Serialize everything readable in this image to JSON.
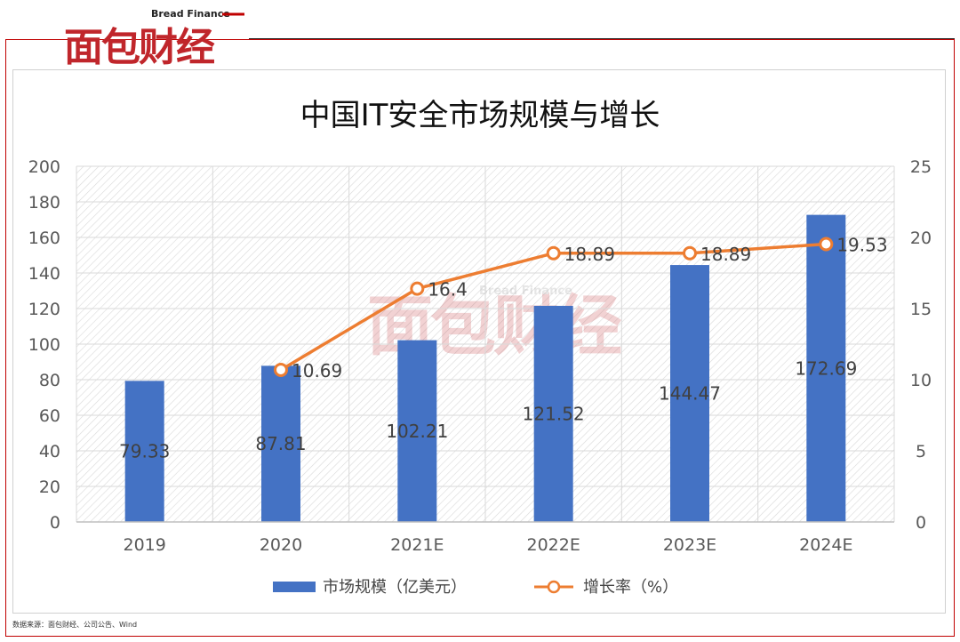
{
  "brand": {
    "logo_text": "面包财经",
    "logo_subtext": "Bread Finance",
    "watermark_text": "面包财经",
    "watermark_subtext": "Bread Finance"
  },
  "footer": {
    "source": "数据来源：面包财经、公司公告、Wind"
  },
  "chart_data": {
    "type": "bar",
    "title": "中国IT安全市场规模与增长",
    "categories": [
      "2019",
      "2020",
      "2021E",
      "2022E",
      "2023E",
      "2024E"
    ],
    "series": [
      {
        "name": "市场规模（亿美元）",
        "type": "bar",
        "axis": "left",
        "color": "#4472c4",
        "values": [
          79.33,
          87.81,
          102.21,
          121.52,
          144.47,
          172.69
        ],
        "labels": [
          "79.33",
          "87.81",
          "102.21",
          "121.52",
          "144.47",
          "172.69"
        ]
      },
      {
        "name": "增长率（%）",
        "type": "line",
        "axis": "right",
        "color": "#ed7d31",
        "values": [
          null,
          10.69,
          16.4,
          18.89,
          18.89,
          19.53
        ],
        "labels": [
          "",
          "10.69",
          "16.4",
          "18.89",
          "18.89",
          "19.53"
        ]
      }
    ],
    "y_left": {
      "min": 0,
      "max": 200,
      "step": 20,
      "ticks": [
        "0",
        "20",
        "40",
        "60",
        "80",
        "100",
        "120",
        "140",
        "160",
        "180",
        "200"
      ]
    },
    "y_right": {
      "min": 0,
      "max": 25,
      "step": 5,
      "ticks": [
        "0",
        "5",
        "10",
        "15",
        "20",
        "25"
      ]
    },
    "grid": true,
    "legend": "bottom"
  }
}
